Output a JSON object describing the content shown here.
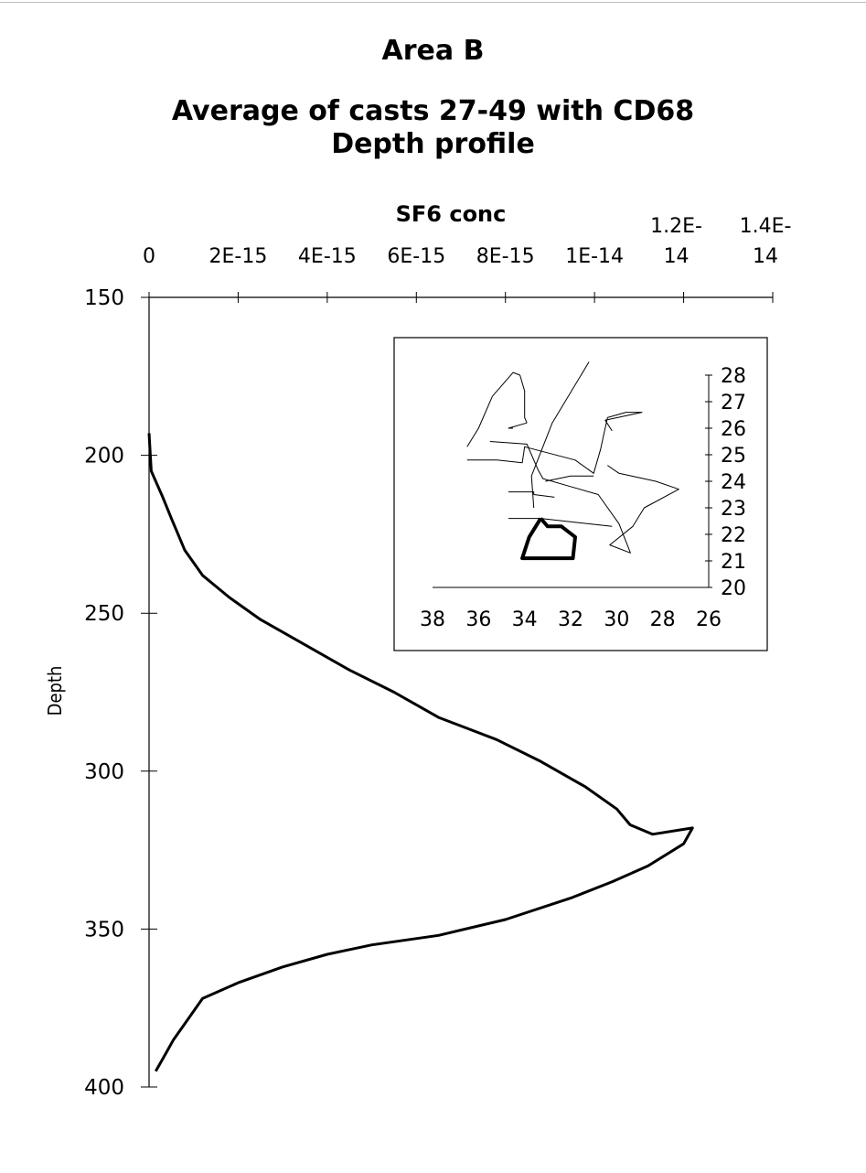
{
  "chart_data": [
    {
      "type": "line",
      "title": "Area B",
      "subtitle_lines": [
        "Average of casts 27-49 with CD68",
        "Depth profile"
      ],
      "xlabel": "SF6 conc",
      "ylabel": "Depth",
      "xlim": [
        0,
        1.4e-14
      ],
      "ylim": [
        150,
        400
      ],
      "y_inverted": true,
      "x_axis_position": "top",
      "x_ticks": [
        {
          "value": 0,
          "label": [
            "0"
          ]
        },
        {
          "value": 2e-15,
          "label": [
            "2E-15"
          ]
        },
        {
          "value": 4e-15,
          "label": [
            "4E-15"
          ]
        },
        {
          "value": 6e-15,
          "label": [
            "6E-15"
          ]
        },
        {
          "value": 8e-15,
          "label": [
            "8E-15"
          ]
        },
        {
          "value": 1e-14,
          "label": [
            "1E-14"
          ]
        },
        {
          "value": 1.2e-14,
          "label": [
            "1.2E-",
            "14"
          ]
        },
        {
          "value": 1.4e-14,
          "label": [
            "1.4E-",
            "14"
          ]
        }
      ],
      "y_ticks": [
        150,
        200,
        250,
        300,
        350,
        400
      ],
      "grid": false,
      "series": [
        {
          "x": [
            0,
            5e-17,
            3e-16,
            5e-16,
            8e-16,
            1.2e-15,
            1.8e-15,
            2.5e-15,
            3.5e-15,
            4.5e-15,
            5.5e-15,
            6.5e-15,
            7.8e-15,
            8.8e-15,
            9.8e-15,
            1.05e-14,
            1.08e-14,
            1.13e-14,
            1.22e-14,
            1.2e-14,
            1.12e-14,
            1.04e-14,
            9.5e-15,
            8e-15,
            6.5e-15,
            5e-15,
            4e-15,
            3e-15,
            2e-15,
            1.2e-15,
            8e-16,
            5.5e-16,
            3.5e-16,
            1.5e-16
          ],
          "y": [
            193,
            205,
            213,
            220,
            230,
            238,
            245,
            252,
            260,
            268,
            275,
            283,
            290,
            297,
            305,
            312,
            317,
            320,
            318,
            323,
            330,
            335,
            340,
            347,
            352,
            355,
            358,
            362,
            367,
            372,
            380,
            385,
            390,
            395
          ]
        }
      ]
    },
    {
      "type": "line",
      "title": "",
      "xlim": [
        38,
        26
      ],
      "ylim": [
        20,
        28
      ],
      "x_ticks": [
        38,
        36,
        34,
        32,
        30,
        28,
        26
      ],
      "y_ticks": [
        20,
        21,
        22,
        23,
        24,
        25,
        26,
        27,
        28
      ],
      "y_axis_position": "right",
      "x_axis_position": "bottom",
      "series": [
        {
          "x": [
            36.5,
            36.0,
            35.4,
            35.4
          ],
          "y": [
            25.3,
            26.0,
            27.2,
            27.2
          ]
        },
        {
          "x": [
            35.4,
            34.5,
            34.5,
            34.2
          ],
          "y": [
            27.2,
            28.1,
            28.1,
            28.0
          ]
        },
        {
          "x": [
            34.2,
            34.0,
            34.0,
            33.9
          ],
          "y": [
            28.0,
            27.4,
            26.4,
            26.2
          ]
        },
        {
          "x": [
            33.9,
            34.7,
            34.5
          ],
          "y": [
            26.2,
            26.0,
            26.0
          ]
        },
        {
          "x": [
            35.5,
            33.9,
            33.4,
            33.2,
            32.0,
            30.8,
            29.9,
            29.4,
            30.3,
            29.3,
            28.8,
            27.3,
            28.3,
            29.9,
            30.4
          ],
          "y": [
            25.5,
            25.4,
            24.4,
            24.1,
            23.8,
            23.5,
            22.4,
            21.3,
            21.6,
            22.3,
            23.0,
            23.7,
            24.0,
            24.3,
            24.6
          ]
        },
        {
          "x": [
            31.0,
            32.0,
            33.1
          ],
          "y": [
            24.2,
            24.2,
            24.0
          ]
        },
        {
          "x": [
            36.5,
            35.2,
            34.1,
            34.0,
            31.8,
            31.0,
            30.7,
            30.4,
            29.6,
            28.9,
            30.5,
            30.2
          ],
          "y": [
            24.8,
            24.8,
            24.7,
            25.3,
            24.8,
            24.3,
            25.2,
            26.4,
            26.6,
            26.6,
            26.3,
            25.9
          ]
        },
        {
          "x": [
            34.7,
            33.6,
            33.6,
            32.7
          ],
          "y": [
            23.6,
            23.6,
            23.5,
            23.4
          ]
        },
        {
          "x": [
            34.7,
            33.4,
            33.3,
            30.2
          ],
          "y": [
            22.6,
            22.6,
            22.6,
            22.3
          ]
        },
        {
          "x": [
            33.6,
            33.7,
            32.8,
            31.2
          ],
          "y": [
            23.0,
            24.2,
            26.2,
            28.5
          ]
        },
        {
          "x": [
            33.3,
            33.8,
            34.1,
            33.4,
            31.9,
            31.8,
            32.4,
            33.0,
            33.3
          ],
          "y": [
            22.6,
            21.9,
            21.1,
            21.1,
            21.1,
            21.9,
            22.3,
            22.3,
            22.6
          ],
          "bold": true
        }
      ]
    }
  ]
}
